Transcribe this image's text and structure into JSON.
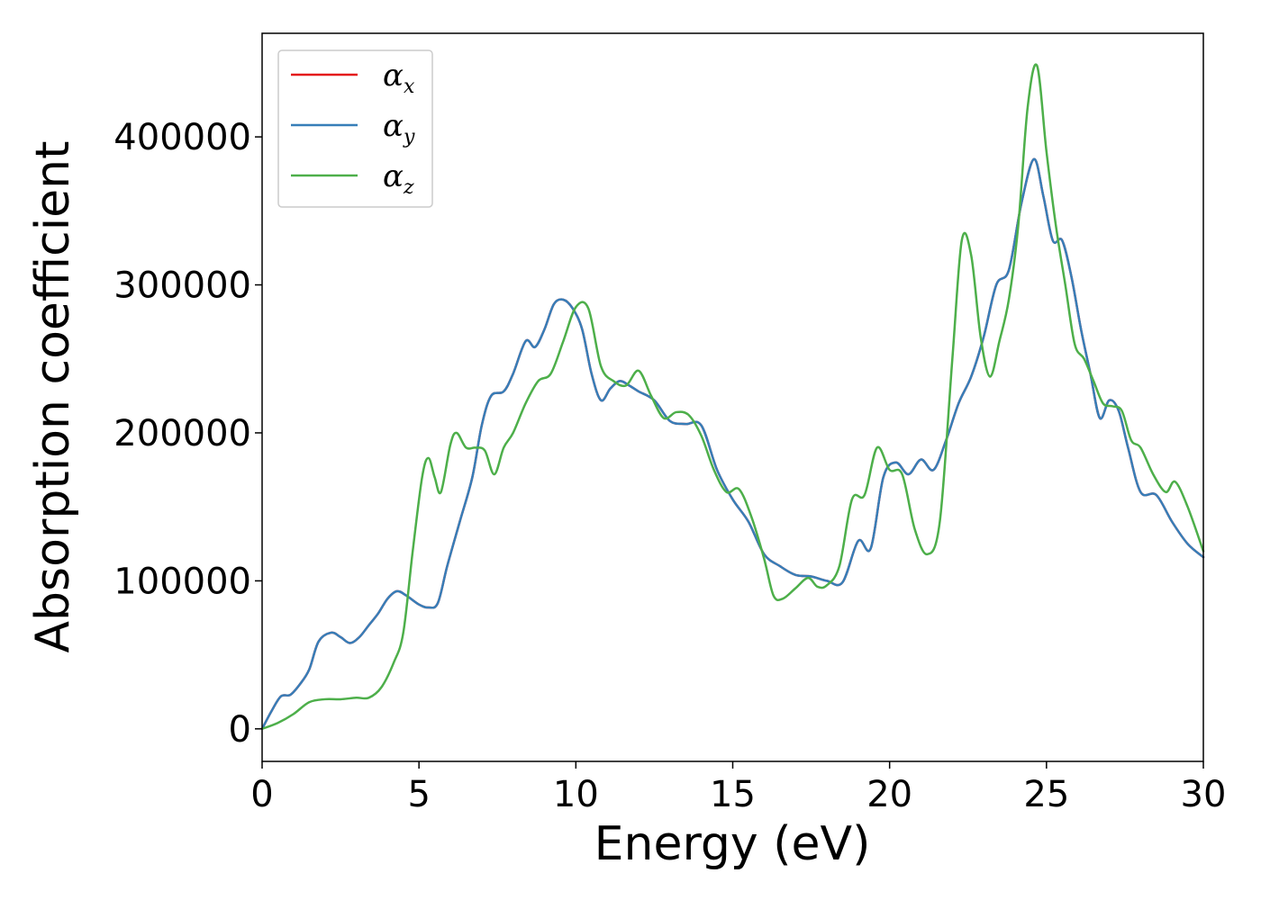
{
  "chart_data": {
    "type": "line",
    "xlabel": "Energy (eV)",
    "ylabel": "Absorption coefficient",
    "xlim": [
      0,
      30
    ],
    "ylim": [
      -22000,
      470000
    ],
    "xticks": [
      0,
      5,
      10,
      15,
      20,
      25,
      30
    ],
    "yticks": [
      0,
      100000,
      200000,
      300000,
      400000
    ],
    "grid": false,
    "legend_position": "top-left",
    "series": [
      {
        "name": "αx",
        "symbol": "α",
        "subscript": "x",
        "color": "#e41a1c",
        "x": [
          0,
          0.3,
          0.6,
          0.9,
          1.2,
          1.5,
          1.8,
          2.2,
          2.5,
          2.8,
          3.1,
          3.4,
          3.7,
          4.0,
          4.3,
          4.6,
          5.0,
          5.3,
          5.6,
          5.9,
          6.3,
          6.7,
          7.0,
          7.3,
          7.7,
          8.0,
          8.4,
          8.7,
          9.0,
          9.3,
          9.6,
          9.9,
          10.2,
          10.5,
          10.8,
          11.1,
          11.4,
          11.7,
          12.0,
          12.5,
          13.0,
          13.5,
          14.0,
          14.5,
          15.0,
          15.5,
          16.0,
          16.5,
          17.0,
          17.5,
          18.0,
          18.5,
          19.0,
          19.4,
          19.8,
          20.2,
          20.6,
          21.0,
          21.4,
          21.8,
          22.2,
          22.6,
          23.0,
          23.4,
          23.8,
          24.2,
          24.6,
          24.9,
          25.2,
          25.5,
          25.8,
          26.1,
          26.4,
          26.7,
          27.0,
          27.3,
          27.6,
          28.0,
          28.5,
          29.0,
          29.5,
          30.0
        ],
        "values": [
          0,
          12000,
          22000,
          23000,
          30000,
          40000,
          59000,
          65000,
          62000,
          58000,
          62000,
          70000,
          78000,
          88000,
          93000,
          90000,
          84000,
          82000,
          85000,
          110000,
          140000,
          170000,
          205000,
          225000,
          228000,
          240000,
          262000,
          258000,
          270000,
          287000,
          290000,
          284000,
          270000,
          240000,
          222000,
          230000,
          235000,
          232000,
          228000,
          222000,
          208000,
          206000,
          205000,
          175000,
          155000,
          140000,
          118000,
          110000,
          104000,
          103000,
          100000,
          99000,
          127000,
          122000,
          170000,
          180000,
          172000,
          182000,
          175000,
          195000,
          220000,
          238000,
          265000,
          300000,
          310000,
          355000,
          385000,
          360000,
          330000,
          330000,
          305000,
          270000,
          240000,
          210000,
          222000,
          215000,
          190000,
          160000,
          158000,
          140000,
          125000,
          116000
        ]
      },
      {
        "name": "αy",
        "symbol": "α",
        "subscript": "y",
        "color": "#377eb8",
        "x": [
          0,
          0.3,
          0.6,
          0.9,
          1.2,
          1.5,
          1.8,
          2.2,
          2.5,
          2.8,
          3.1,
          3.4,
          3.7,
          4.0,
          4.3,
          4.6,
          5.0,
          5.3,
          5.6,
          5.9,
          6.3,
          6.7,
          7.0,
          7.3,
          7.7,
          8.0,
          8.4,
          8.7,
          9.0,
          9.3,
          9.6,
          9.9,
          10.2,
          10.5,
          10.8,
          11.1,
          11.4,
          11.7,
          12.0,
          12.5,
          13.0,
          13.5,
          14.0,
          14.5,
          15.0,
          15.5,
          16.0,
          16.5,
          17.0,
          17.5,
          18.0,
          18.5,
          19.0,
          19.4,
          19.8,
          20.2,
          20.6,
          21.0,
          21.4,
          21.8,
          22.2,
          22.6,
          23.0,
          23.4,
          23.8,
          24.2,
          24.6,
          24.9,
          25.2,
          25.5,
          25.8,
          26.1,
          26.4,
          26.7,
          27.0,
          27.3,
          27.6,
          28.0,
          28.5,
          29.0,
          29.5,
          30.0
        ],
        "values": [
          0,
          12000,
          22000,
          23000,
          30000,
          40000,
          59000,
          65000,
          62000,
          58000,
          62000,
          70000,
          78000,
          88000,
          93000,
          90000,
          84000,
          82000,
          85000,
          110000,
          140000,
          170000,
          205000,
          225000,
          228000,
          240000,
          262000,
          258000,
          270000,
          287000,
          290000,
          284000,
          270000,
          240000,
          222000,
          230000,
          235000,
          232000,
          228000,
          222000,
          208000,
          206000,
          205000,
          175000,
          155000,
          140000,
          118000,
          110000,
          104000,
          103000,
          100000,
          99000,
          127000,
          122000,
          170000,
          180000,
          172000,
          182000,
          175000,
          195000,
          220000,
          238000,
          265000,
          300000,
          310000,
          355000,
          385000,
          360000,
          330000,
          330000,
          305000,
          270000,
          240000,
          210000,
          222000,
          215000,
          190000,
          160000,
          158000,
          140000,
          125000,
          116000
        ]
      },
      {
        "name": "αz",
        "symbol": "α",
        "subscript": "z",
        "color": "#4daf4a",
        "x": [
          0,
          0.5,
          1.0,
          1.5,
          2.0,
          2.5,
          3.0,
          3.4,
          3.8,
          4.2,
          4.5,
          4.8,
          5.1,
          5.3,
          5.5,
          5.7,
          6.0,
          6.2,
          6.5,
          6.8,
          7.1,
          7.4,
          7.7,
          8.0,
          8.4,
          8.8,
          9.2,
          9.6,
          10.0,
          10.4,
          10.8,
          11.2,
          11.6,
          12.0,
          12.4,
          12.8,
          13.2,
          13.6,
          14.0,
          14.4,
          14.8,
          15.2,
          15.6,
          16.0,
          16.3,
          16.6,
          17.0,
          17.4,
          17.7,
          18.0,
          18.4,
          18.8,
          19.2,
          19.6,
          20.0,
          20.4,
          20.8,
          21.2,
          21.6,
          22.0,
          22.3,
          22.6,
          22.9,
          23.2,
          23.5,
          23.8,
          24.1,
          24.4,
          24.7,
          25.0,
          25.3,
          25.6,
          25.9,
          26.2,
          26.5,
          26.8,
          27.1,
          27.4,
          27.7,
          28.0,
          28.4,
          28.8,
          29.1,
          29.5,
          30.0
        ],
        "values": [
          0,
          4000,
          10000,
          18000,
          20000,
          20000,
          21000,
          21000,
          28000,
          45000,
          65000,
          120000,
          170000,
          183000,
          170000,
          160000,
          192000,
          200000,
          190000,
          190000,
          188000,
          172000,
          190000,
          200000,
          220000,
          235000,
          240000,
          262000,
          285000,
          284000,
          245000,
          235000,
          232000,
          242000,
          225000,
          210000,
          214000,
          212000,
          198000,
          175000,
          160000,
          162000,
          143000,
          115000,
          90000,
          88000,
          95000,
          102000,
          96000,
          97000,
          110000,
          155000,
          158000,
          190000,
          175000,
          172000,
          135000,
          118000,
          140000,
          250000,
          330000,
          320000,
          265000,
          238000,
          262000,
          290000,
          340000,
          420000,
          448000,
          390000,
          340000,
          300000,
          260000,
          250000,
          235000,
          220000,
          218000,
          215000,
          195000,
          190000,
          172000,
          160000,
          167000,
          150000,
          120000
        ]
      }
    ]
  }
}
